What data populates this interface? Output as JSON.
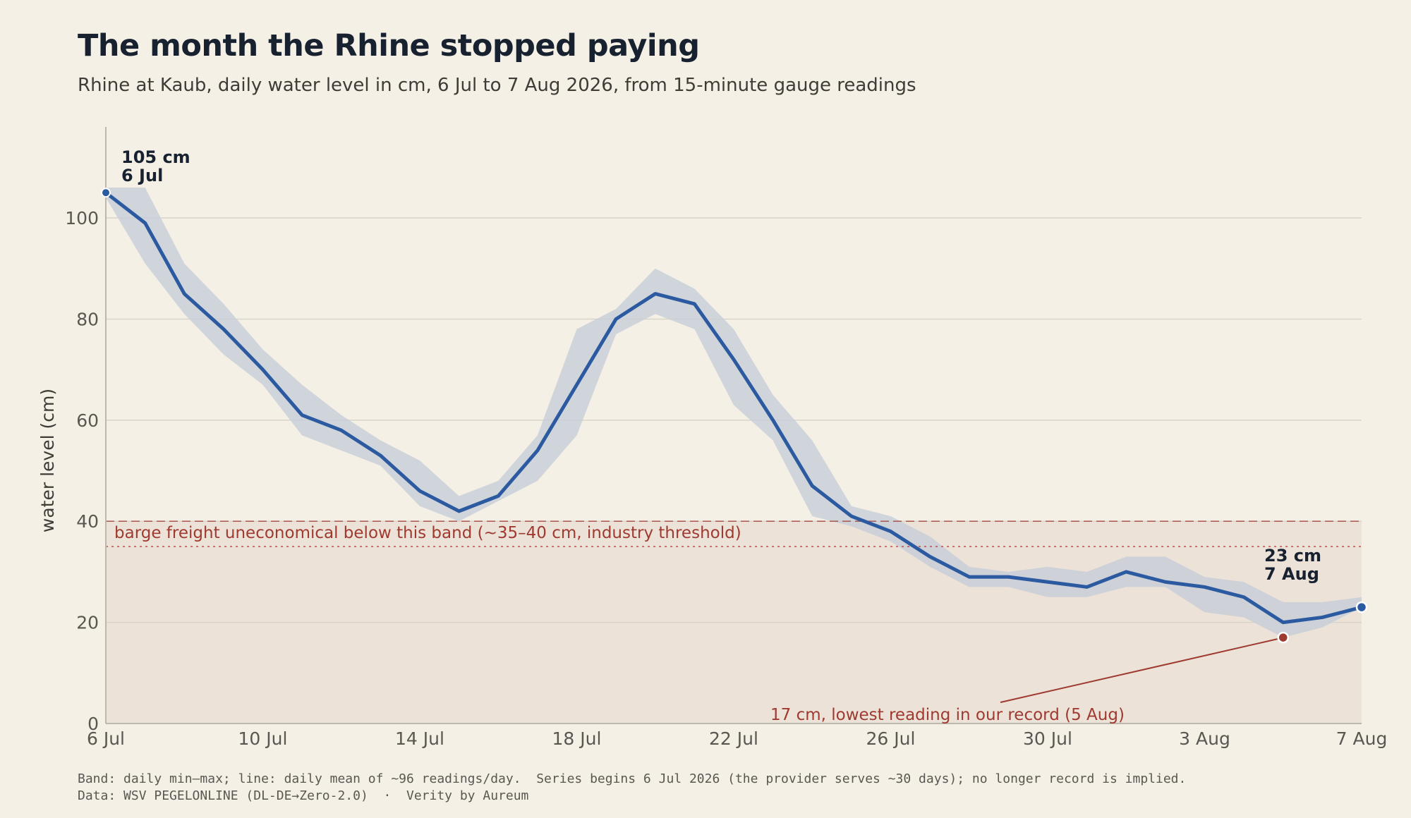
{
  "header": {
    "title": "The month the Rhine stopped paying",
    "subtitle": "Rhine at Kaub, daily water level in cm, 6 Jul to 7 Aug 2026, from 15-minute gauge readings"
  },
  "footer": {
    "line1": "Band: daily min–max; line: daily mean of ~96 readings/day.  Series begins 6 Jul 2026 (the provider serves ~30 days); no longer record is implied.",
    "line2": "Data: WSV PEGELONLINE (DL-DE→Zero-2.0)  ·  Verity by Aureum"
  },
  "colors": {
    "background": "#f4f0e6",
    "line": "#2c5aa0",
    "band": "#c9cfd8",
    "threshold": "#9e3a30",
    "threshold_zone": "#ece2d8",
    "grid": "#d9d4c9",
    "axis": "#bdb8ae"
  },
  "chart_data": {
    "type": "line",
    "ylabel": "water level (cm)",
    "ylim": [
      0,
      118
    ],
    "yticks": [
      0,
      20,
      40,
      60,
      80,
      100
    ],
    "xticks": [
      {
        "label": "6 Jul",
        "day": 0
      },
      {
        "label": "10 Jul",
        "day": 4
      },
      {
        "label": "14 Jul",
        "day": 8
      },
      {
        "label": "18 Jul",
        "day": 12
      },
      {
        "label": "22 Jul",
        "day": 16
      },
      {
        "label": "26 Jul",
        "day": 20
      },
      {
        "label": "30 Jul",
        "day": 24
      },
      {
        "label": "3 Aug",
        "day": 28
      },
      {
        "label": "7 Aug",
        "day": 32
      }
    ],
    "dates": [
      "6 Jul",
      "7 Jul",
      "8 Jul",
      "9 Jul",
      "10 Jul",
      "11 Jul",
      "12 Jul",
      "13 Jul",
      "14 Jul",
      "15 Jul",
      "16 Jul",
      "17 Jul",
      "18 Jul",
      "19 Jul",
      "20 Jul",
      "21 Jul",
      "22 Jul",
      "23 Jul",
      "24 Jul",
      "25 Jul",
      "26 Jul",
      "27 Jul",
      "28 Jul",
      "29 Jul",
      "30 Jul",
      "31 Jul",
      "1 Aug",
      "2 Aug",
      "3 Aug",
      "4 Aug",
      "5 Aug",
      "6 Aug",
      "7 Aug"
    ],
    "mean": [
      105,
      99,
      85,
      78,
      70,
      61,
      58,
      53,
      46,
      42,
      45,
      54,
      67,
      80,
      85,
      83,
      72,
      60,
      47,
      41,
      38,
      33,
      29,
      29,
      28,
      27,
      30,
      28,
      27,
      25,
      20,
      21,
      23
    ],
    "min": [
      104,
      91,
      81,
      73,
      67,
      57,
      54,
      51,
      43,
      40,
      44,
      48,
      57,
      77,
      81,
      78,
      63,
      56,
      41,
      39,
      36,
      31,
      27,
      27,
      25,
      25,
      27,
      27,
      22,
      21,
      17,
      19,
      23
    ],
    "max": [
      106,
      106,
      91,
      83,
      74,
      67,
      61,
      56,
      52,
      45,
      48,
      57,
      78,
      82,
      90,
      86,
      78,
      65,
      56,
      43,
      41,
      37,
      31,
      30,
      31,
      30,
      33,
      33,
      29,
      28,
      24,
      24,
      25
    ],
    "threshold": {
      "upper": 40,
      "lower": 35,
      "label": "barge freight uneconomical below this band (~35–40 cm, industry threshold)"
    },
    "annotations": {
      "start": {
        "day": 0,
        "value": 105,
        "line1": "105 cm",
        "line2": "6 Jul"
      },
      "end": {
        "day": 32,
        "value": 23,
        "line1": "23 cm",
        "line2": "7 Aug"
      },
      "lowest": {
        "day": 30,
        "value": 17,
        "text": "17 cm, lowest reading in our record (5 Aug)"
      }
    }
  }
}
